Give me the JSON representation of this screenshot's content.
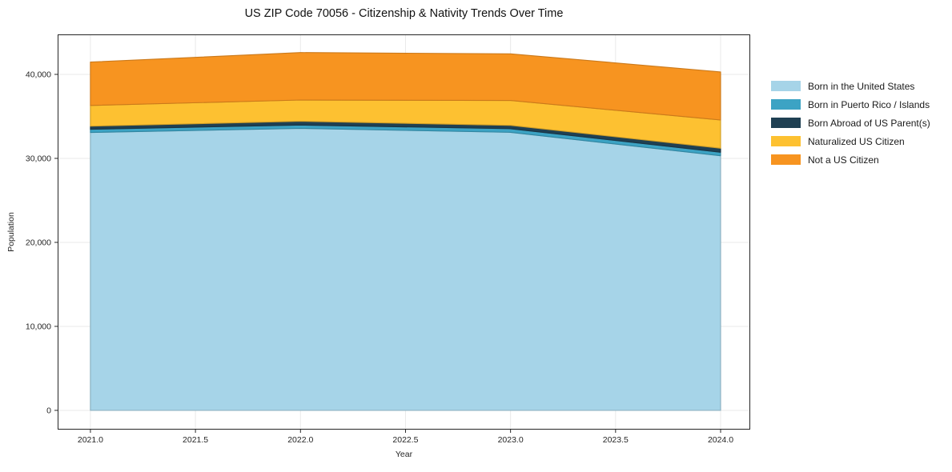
{
  "title": "US ZIP Code 70056 - Citizenship & Nativity Trends Over Time",
  "chart_data": {
    "type": "area",
    "stacked": true,
    "title": "US ZIP Code 70056 - Citizenship & Nativity Trends Over Time",
    "xlabel": "Year",
    "ylabel": "Population",
    "x": [
      2021,
      2022,
      2023,
      2024
    ],
    "series": [
      {
        "name": "Born in the United States",
        "color": "#a6d4e8",
        "values": [
          33080,
          33570,
          33100,
          30310
        ]
      },
      {
        "name": "Born in Puerto Rico / Islands",
        "color": "#3ca3c4",
        "values": [
          380,
          400,
          430,
          420
        ]
      },
      {
        "name": "Born Abroad of US Parent(s)",
        "color": "#1f4053",
        "values": [
          380,
          450,
          400,
          480
        ]
      },
      {
        "name": "Naturalized US Citizen",
        "color": "#fdc131",
        "values": [
          2460,
          2530,
          2960,
          3360
        ]
      },
      {
        "name": "Not a US Citizen",
        "color": "#f79420",
        "values": [
          5160,
          5650,
          5560,
          5720
        ]
      }
    ],
    "stacked_totals": [
      41460,
      42600,
      42450,
      40290
    ],
    "xlim": [
      2020.844,
      2024.141
    ],
    "ylim": [
      -2290,
      44760
    ],
    "xticks": [
      {
        "v": 2021.0,
        "label": "2021.0"
      },
      {
        "v": 2021.5,
        "label": "2021.5"
      },
      {
        "v": 2022.0,
        "label": "2022.0"
      },
      {
        "v": 2022.5,
        "label": "2022.5"
      },
      {
        "v": 2023.0,
        "label": "2023.0"
      },
      {
        "v": 2023.5,
        "label": "2023.5"
      },
      {
        "v": 2024.0,
        "label": "2024.0"
      }
    ],
    "yticks": [
      {
        "v": 0,
        "label": "0"
      },
      {
        "v": 10000,
        "label": "10,000"
      },
      {
        "v": 20000,
        "label": "20,000"
      },
      {
        "v": 30000,
        "label": "30,000"
      },
      {
        "v": 40000,
        "label": "40,000"
      }
    ],
    "grid": true,
    "grid_color": "#e9e9e9",
    "frame_color": "#262626",
    "tick_label_color": "#262626",
    "legend_position": "right"
  }
}
